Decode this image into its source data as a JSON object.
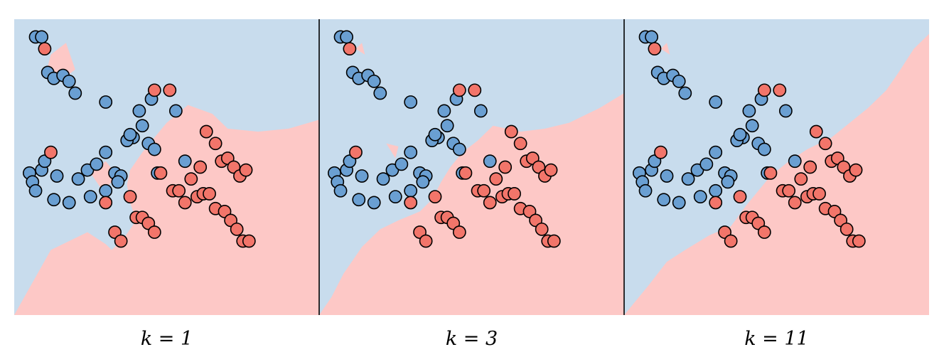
{
  "chart_data": {
    "type": "scatter",
    "xlim": [
      0,
      100
    ],
    "ylim": [
      0,
      100
    ],
    "grid": false,
    "legend": "none",
    "colors": {
      "background_blue": "#c8dced",
      "region_red": "#fdc8c6",
      "class_blue": "#6a9fd2",
      "class_red": "#f2756a"
    },
    "points": {
      "blue": [
        [
          7,
          94
        ],
        [
          9,
          94
        ],
        [
          11,
          82
        ],
        [
          13,
          80
        ],
        [
          16,
          81
        ],
        [
          18,
          79
        ],
        [
          20,
          75
        ],
        [
          30,
          72
        ],
        [
          39,
          60
        ],
        [
          41,
          69
        ],
        [
          42,
          64
        ],
        [
          45,
          73
        ],
        [
          53,
          69
        ],
        [
          44,
          58
        ],
        [
          46,
          56
        ],
        [
          47,
          48
        ],
        [
          5,
          48
        ],
        [
          9,
          49
        ],
        [
          14,
          47
        ],
        [
          13,
          39
        ],
        [
          21,
          46
        ],
        [
          24,
          49
        ],
        [
          27,
          51
        ],
        [
          30,
          55
        ],
        [
          33,
          48
        ],
        [
          35,
          47
        ],
        [
          37,
          59
        ],
        [
          38,
          61
        ],
        [
          10,
          52
        ],
        [
          18,
          38
        ],
        [
          6,
          45
        ],
        [
          7,
          42
        ],
        [
          25,
          40
        ],
        [
          30,
          42
        ],
        [
          34,
          45
        ],
        [
          56,
          52
        ]
      ],
      "red": [
        [
          10,
          90
        ],
        [
          12,
          55
        ],
        [
          46,
          76
        ],
        [
          51,
          76
        ],
        [
          63,
          62
        ],
        [
          66,
          58
        ],
        [
          68,
          52
        ],
        [
          70,
          53
        ],
        [
          72,
          50
        ],
        [
          74,
          47
        ],
        [
          76,
          49
        ],
        [
          61,
          50
        ],
        [
          48,
          48
        ],
        [
          52,
          42
        ],
        [
          54,
          42
        ],
        [
          56,
          38
        ],
        [
          58,
          46
        ],
        [
          60,
          40
        ],
        [
          62,
          41
        ],
        [
          64,
          41
        ],
        [
          66,
          36
        ],
        [
          69,
          35
        ],
        [
          71,
          32
        ],
        [
          73,
          29
        ],
        [
          75,
          25
        ],
        [
          77,
          25
        ],
        [
          40,
          33
        ],
        [
          42,
          33
        ],
        [
          44,
          31
        ],
        [
          46,
          28
        ],
        [
          38,
          40
        ],
        [
          30,
          38
        ],
        [
          33,
          28
        ],
        [
          35,
          25
        ]
      ]
    },
    "panels": [
      {
        "label": "k = 1",
        "red_regions": [
          [
            [
              100,
              66
            ],
            [
              90,
              63
            ],
            [
              80,
              62
            ],
            [
              70,
              63
            ],
            [
              65,
              68
            ],
            [
              57,
              71
            ],
            [
              50,
              65
            ],
            [
              46,
              60
            ],
            [
              42,
              55
            ],
            [
              38,
              49
            ],
            [
              37,
              44
            ],
            [
              38,
              38
            ],
            [
              40,
              32
            ],
            [
              36,
              26
            ],
            [
              30,
              20
            ],
            [
              24,
              14
            ],
            [
              18,
              10
            ],
            [
              12,
              4
            ],
            [
              8,
              0
            ],
            [
              100,
              0
            ]
          ],
          [
            [
              0,
              0
            ],
            [
              12,
              22
            ],
            [
              24,
              28
            ],
            [
              30,
              24
            ],
            [
              34,
              20
            ],
            [
              20,
              8
            ],
            [
              10,
              0
            ]
          ],
          [
            [
              12,
              88
            ],
            [
              17,
              92
            ],
            [
              20,
              83
            ],
            [
              15,
              79
            ],
            [
              11,
              84
            ]
          ],
          [
            [
              25,
              48
            ],
            [
              30,
              52
            ],
            [
              34,
              47
            ],
            [
              29,
              42
            ]
          ]
        ]
      },
      {
        "label": "k = 3",
        "red_regions": [
          [
            [
              100,
              75
            ],
            [
              92,
              70
            ],
            [
              82,
              65
            ],
            [
              74,
              63
            ],
            [
              66,
              62
            ],
            [
              57,
              64
            ],
            [
              52,
              59
            ],
            [
              47,
              55
            ],
            [
              43,
              50
            ],
            [
              40,
              45
            ],
            [
              37,
              39
            ],
            [
              33,
              35
            ],
            [
              26,
              32
            ],
            [
              20,
              29
            ],
            [
              14,
              23
            ],
            [
              8,
              14
            ],
            [
              4,
              6
            ],
            [
              0,
              0
            ],
            [
              100,
              0
            ]
          ],
          [
            [
              12,
              90
            ],
            [
              14,
              92
            ],
            [
              15,
              88
            ]
          ],
          [
            [
              22,
              58
            ],
            [
              26,
              57
            ],
            [
              25,
              53
            ]
          ]
        ]
      },
      {
        "label": "k = 11",
        "red_regions": [
          [
            [
              100,
              95
            ],
            [
              95,
              90
            ],
            [
              90,
              82
            ],
            [
              86,
              76
            ],
            [
              80,
              70
            ],
            [
              74,
              65
            ],
            [
              68,
              60
            ],
            [
              60,
              56
            ],
            [
              54,
              52
            ],
            [
              48,
              47
            ],
            [
              44,
              42
            ],
            [
              40,
              37
            ],
            [
              35,
              30
            ],
            [
              28,
              27
            ],
            [
              20,
              22
            ],
            [
              14,
              18
            ],
            [
              8,
              10
            ],
            [
              0,
              0
            ],
            [
              100,
              0
            ]
          ],
          [
            [
              12,
              90
            ],
            [
              14,
              92
            ],
            [
              15,
              88
            ]
          ]
        ]
      }
    ]
  }
}
